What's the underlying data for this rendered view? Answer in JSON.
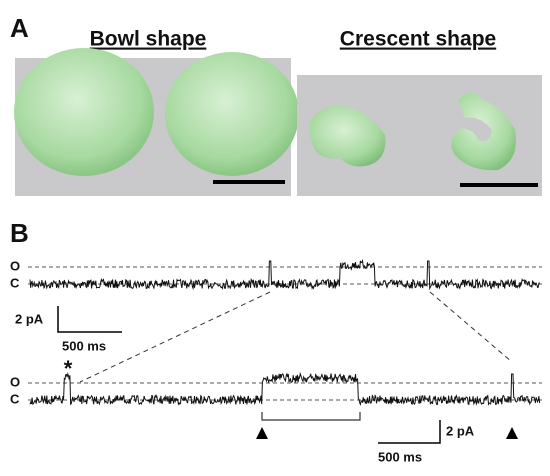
{
  "panel_a": {
    "label": "A",
    "left_title": "Bowl shape",
    "right_title": "Crescent shape"
  },
  "panel_b": {
    "label": "B",
    "top_trace": {
      "open_label": "O",
      "closed_label": "C",
      "scale_current": "2 pA",
      "scale_time": "500 ms"
    },
    "bottom_trace": {
      "open_label": "O",
      "closed_label": "C",
      "marker": "*",
      "scale_current": "2 pA",
      "scale_time": "500 ms"
    }
  }
}
